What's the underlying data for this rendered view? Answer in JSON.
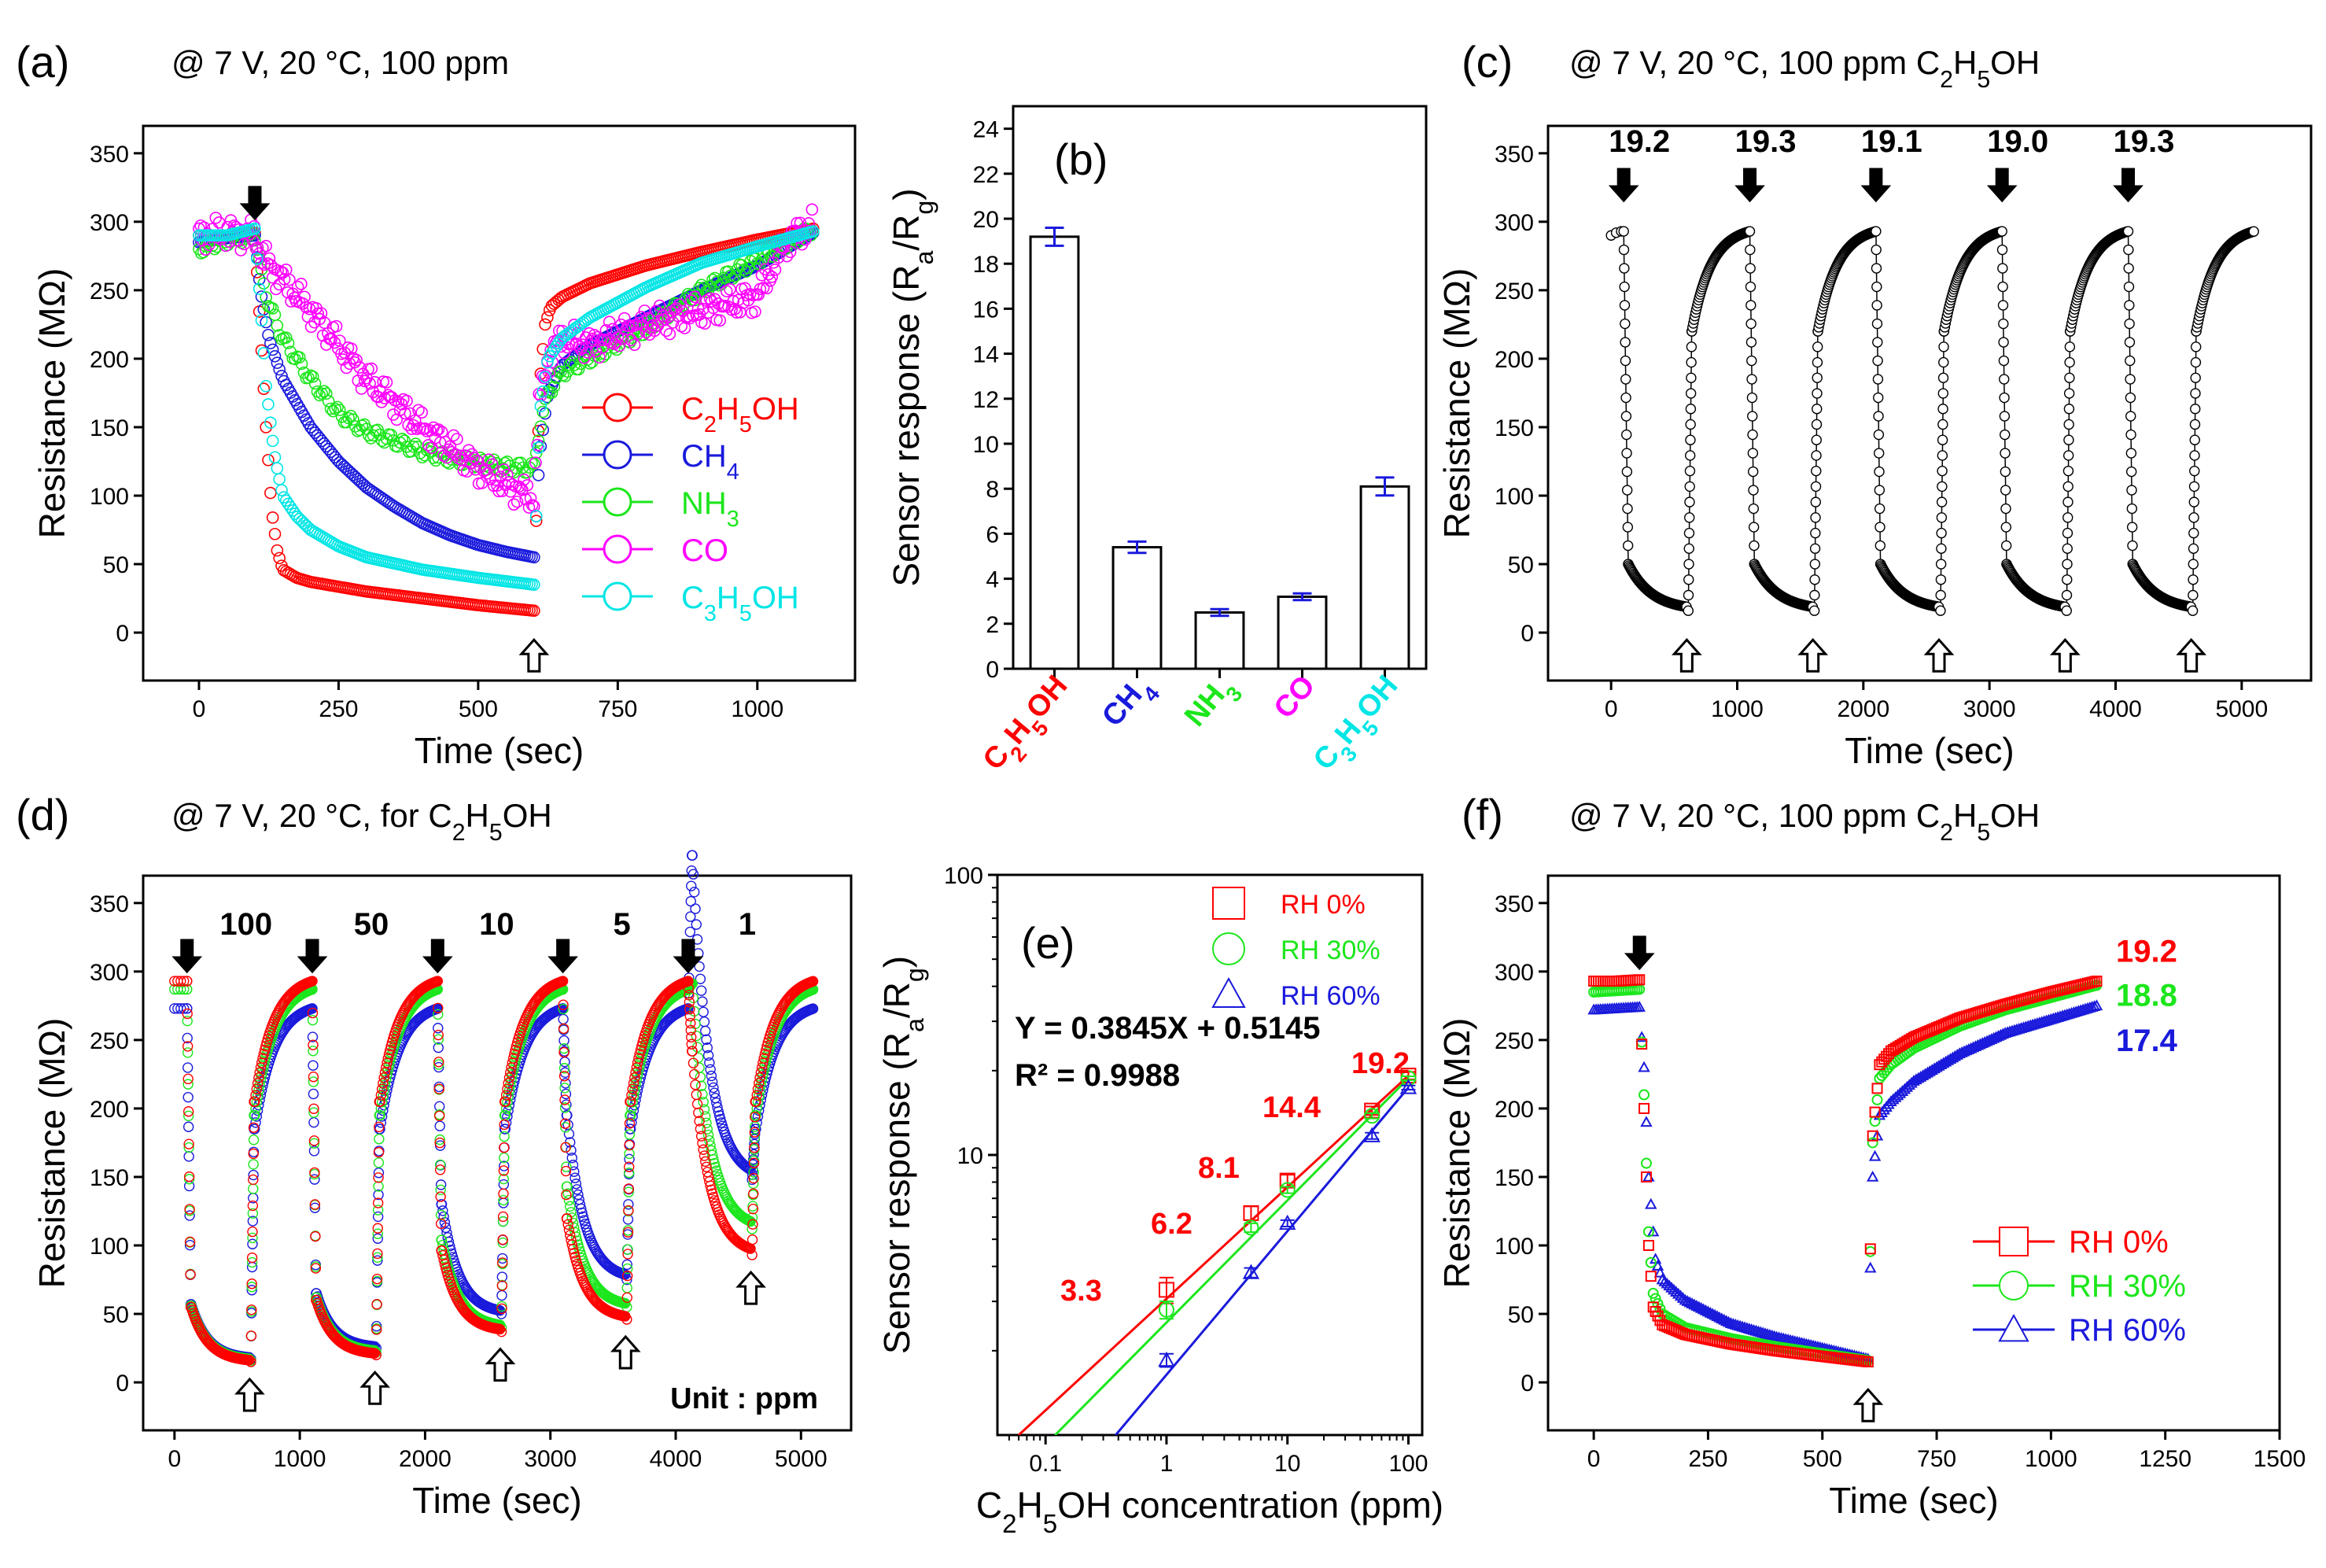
{
  "figure": {
    "description_label": "six-panel gas sensor figure"
  },
  "colors": {
    "red": "#ff0000",
    "blue": "#1a1adc",
    "green": "#1ce61c",
    "magenta": "#ff00ff",
    "cyan": "#00e5e5",
    "black": "#000000"
  },
  "chart_data": [
    {
      "id": "a",
      "type": "line",
      "panel_label": "(a)",
      "title": "@ 7 V, 20 °C, 100 ppm",
      "xlabel": "Time (sec)",
      "ylabel": "Resistance (MΩ)",
      "xlim": [
        -100,
        1175
      ],
      "ylim": [
        -35,
        370
      ],
      "xticks": [
        0,
        250,
        500,
        750,
        1000
      ],
      "yticks": [
        0,
        50,
        100,
        150,
        200,
        250,
        300,
        350
      ],
      "markers": [
        {
          "type": "on",
          "x": 100
        },
        {
          "type": "off",
          "x": 600
        }
      ],
      "legend": {
        "position": "right",
        "entries": [
          {
            "label": "C2H5OH",
            "color": "#ff0000",
            "marker": "circle"
          },
          {
            "label": "CH4",
            "color": "#1a1adc",
            "marker": "circle"
          },
          {
            "label": "NH3",
            "color": "#1ce61c",
            "marker": "circle"
          },
          {
            "label": "CO",
            "color": "#ff00ff",
            "marker": "circle"
          },
          {
            "label": "C3H5OH",
            "color": "#00e5e5",
            "marker": "circle"
          }
        ]
      },
      "series": [
        {
          "name": "C2H5OH",
          "color": "#ff0000",
          "x": [
            0,
            50,
            100,
            110,
            120,
            130,
            140,
            150,
            175,
            200,
            300,
            400,
            500,
            600,
            610,
            620,
            630,
            650,
            700,
            800,
            900,
            1000,
            1100
          ],
          "y": [
            290,
            290,
            292,
            220,
            150,
            90,
            60,
            46,
            40,
            37,
            30,
            25,
            20,
            16,
            180,
            225,
            238,
            245,
            255,
            268,
            278,
            287,
            295
          ]
        },
        {
          "name": "CH4",
          "color": "#1a1adc",
          "x": [
            0,
            50,
            100,
            110,
            125,
            150,
            200,
            250,
            300,
            350,
            400,
            450,
            500,
            550,
            600,
            610,
            625,
            650,
            700,
            800,
            900,
            1000,
            1100
          ],
          "y": [
            285,
            288,
            290,
            250,
            215,
            185,
            150,
            125,
            106,
            92,
            80,
            71,
            64,
            59,
            55,
            130,
            175,
            195,
            210,
            230,
            250,
            268,
            292
          ]
        },
        {
          "name": "NH3",
          "color": "#1ce61c",
          "x": [
            0,
            50,
            100,
            110,
            125,
            150,
            200,
            250,
            300,
            350,
            400,
            450,
            500,
            550,
            600,
            610,
            625,
            650,
            700,
            800,
            900,
            1000,
            1100
          ],
          "y": [
            280,
            287,
            290,
            265,
            240,
            215,
            185,
            160,
            147,
            140,
            132,
            127,
            124,
            121,
            120,
            150,
            175,
            190,
            200,
            222,
            250,
            272,
            295
          ]
        },
        {
          "name": "CO",
          "color": "#ff00ff",
          "x": [
            0,
            50,
            100,
            110,
            125,
            150,
            200,
            250,
            300,
            350,
            400,
            450,
            500,
            550,
            600,
            610,
            625,
            650,
            700,
            800,
            900,
            950,
            1000,
            1050,
            1100
          ],
          "y": [
            290,
            292,
            290,
            278,
            268,
            258,
            235,
            210,
            185,
            168,
            150,
            135,
            120,
            108,
            98,
            170,
            200,
            215,
            210,
            225,
            235,
            240,
            245,
            285,
            298
          ]
        },
        {
          "name": "C3H5OH",
          "color": "#00e5e5",
          "x": [
            0,
            50,
            100,
            110,
            120,
            135,
            150,
            175,
            200,
            250,
            300,
            400,
            500,
            600,
            610,
            625,
            650,
            700,
            800,
            900,
            1000,
            1100
          ],
          "y": [
            290,
            290,
            295,
            240,
            180,
            130,
            100,
            85,
            75,
            63,
            55,
            46,
            40,
            35,
            160,
            200,
            215,
            230,
            252,
            270,
            282,
            293
          ]
        }
      ]
    },
    {
      "id": "b",
      "type": "bar",
      "panel_label": "(b)",
      "title": "",
      "xlabel": "",
      "ylabel": "Sensor response (Ra/Rg)",
      "ylim": [
        0,
        25
      ],
      "yticks": [
        0,
        2,
        4,
        6,
        8,
        10,
        12,
        14,
        16,
        18,
        20,
        22,
        24
      ],
      "categories": [
        "C2H5OH",
        "CH4",
        "NH3",
        "CO",
        "C3H5OH"
      ],
      "category_colors": [
        "#ff0000",
        "#1a1adc",
        "#1ce61c",
        "#ff00ff",
        "#00e5e5"
      ],
      "values": [
        19.2,
        5.4,
        2.5,
        3.2,
        8.1
      ],
      "errors": [
        0.4,
        0.25,
        0.15,
        0.15,
        0.4
      ]
    },
    {
      "id": "c",
      "type": "line",
      "panel_label": "(c)",
      "title": "@ 7 V, 20 °C, 100 ppm C2H5OH",
      "xlabel": "Time (sec)",
      "ylabel": "Resistance (MΩ)",
      "xlim": [
        -500,
        5550
      ],
      "ylim": [
        -35,
        370
      ],
      "xticks": [
        0,
        1000,
        2000,
        3000,
        4000,
        5000
      ],
      "yticks": [
        0,
        50,
        100,
        150,
        200,
        250,
        300,
        350
      ],
      "cycle_labels": [
        {
          "x": 100,
          "y": 350,
          "text": "19.2"
        },
        {
          "x": 1100,
          "y": 350,
          "text": "19.3"
        },
        {
          "x": 2100,
          "y": 350,
          "text": "19.1"
        },
        {
          "x": 3100,
          "y": 350,
          "text": "19.0"
        },
        {
          "x": 4100,
          "y": 350,
          "text": "19.3"
        }
      ],
      "on_times": [
        100,
        1100,
        2100,
        3100,
        4100
      ],
      "off_times": [
        600,
        1600,
        2600,
        3600,
        4600
      ],
      "series": [
        {
          "name": "C2H5OH 100 ppm",
          "color": "#000000",
          "cycles": 5,
          "period": 1000,
          "r_base": 293,
          "r_min": 16
        }
      ]
    },
    {
      "id": "d",
      "type": "line",
      "panel_label": "(d)",
      "title": "@ 7 V, 20 °C, for C2H5OH",
      "xlabel": "Time (sec)",
      "ylabel": "Resistance (MΩ)",
      "xlim": [
        -250,
        5400
      ],
      "ylim": [
        -35,
        370
      ],
      "xticks": [
        0,
        1000,
        2000,
        3000,
        4000,
        5000
      ],
      "yticks": [
        0,
        50,
        100,
        150,
        200,
        250,
        300,
        350
      ],
      "concentration_labels": [
        {
          "x": 450,
          "y": 335,
          "text": "100"
        },
        {
          "x": 1500,
          "y": 335,
          "text": "50"
        },
        {
          "x": 2450,
          "y": 335,
          "text": "10"
        },
        {
          "x": 3370,
          "y": 335,
          "text": "5"
        },
        {
          "x": 4430,
          "y": 335,
          "text": "1"
        }
      ],
      "unit_text": "Unit : ppm",
      "on_times": [
        100,
        1100,
        2100,
        3100,
        4100
      ],
      "off_times": [
        600,
        1600,
        2600,
        3600,
        4600
      ],
      "series": [
        {
          "name": "RH 0%",
          "color": "#ff0000",
          "minima": [
            15,
            20,
            37,
            46,
            93
          ],
          "base": 293
        },
        {
          "name": "RH 30%",
          "color": "#1ce61c",
          "minima": [
            16,
            22,
            40,
            55,
            112
          ],
          "base": 287
        },
        {
          "name": "RH 60%",
          "color": "#1a1adc",
          "minima": [
            17,
            25,
            50,
            75,
            148
          ],
          "base": 273
        }
      ]
    },
    {
      "id": "e",
      "type": "scatter",
      "panel_label": "(e)",
      "title": "",
      "xlabel": "C2H5OH concentration (ppm)",
      "ylabel": "Sensor response (Ra/Rg)",
      "xscale": "log",
      "yscale": "log",
      "xlim": [
        0.04,
        130
      ],
      "ylim": [
        1,
        100
      ],
      "xticks": [
        0.1,
        1,
        10,
        100
      ],
      "yticks": [
        10,
        100
      ],
      "equation": "Y = 0.3845X + 0.5145",
      "r_squared": "R² = 0.9988",
      "data_labels": [
        {
          "x": 0.5,
          "y": 3.4,
          "text": "3.3"
        },
        {
          "x": 2.0,
          "y": 6.6,
          "text": "6.2"
        },
        {
          "x": 4.0,
          "y": 9.2,
          "text": "8.1"
        },
        {
          "x": 20,
          "y": 15.8,
          "text": "14.4"
        },
        {
          "x": 52,
          "y": 21.5,
          "text": "19.2"
        }
      ],
      "x": [
        1,
        5,
        10,
        50,
        100
      ],
      "series": [
        {
          "name": "RH 0%",
          "color": "#ff0000",
          "marker": "square",
          "values": [
            3.3,
            6.2,
            8.1,
            14.4,
            19.2
          ],
          "errors": [
            0.35,
            0.35,
            0.4,
            0.5,
            0.6
          ],
          "fit": [
            [
              0.06,
              1.0
            ],
            [
              100,
              19.2
            ]
          ]
        },
        {
          "name": "RH 30%",
          "color": "#1ce61c",
          "marker": "circle",
          "values": [
            2.8,
            5.5,
            7.5,
            13.8,
            18.8
          ],
          "errors": [
            0.2,
            0.2,
            0.2,
            0.3,
            0.3
          ],
          "fit": [
            [
              0.12,
              1.0
            ],
            [
              100,
              18.8
            ]
          ]
        },
        {
          "name": "RH 60%",
          "color": "#1a1adc",
          "marker": "triangle",
          "values": [
            1.85,
            3.8,
            5.7,
            11.7,
            17.4
          ],
          "errors": [
            0.1,
            0.15,
            0.15,
            0.3,
            0.3
          ],
          "fit": [
            [
              0.38,
              1.0
            ],
            [
              100,
              17.4
            ]
          ]
        }
      ]
    },
    {
      "id": "f",
      "type": "line",
      "panel_label": "(f)",
      "title": "@ 7 V, 20 °C, 100 ppm C2H5OH",
      "xlabel": "Time (sec)",
      "ylabel": "Resistance (MΩ)",
      "xlim": [
        -100,
        1500
      ],
      "ylim": [
        -35,
        370
      ],
      "xticks": [
        0,
        250,
        500,
        750,
        1000,
        1250,
        1500
      ],
      "yticks": [
        0,
        50,
        100,
        150,
        200,
        250,
        300,
        350
      ],
      "markers": [
        {
          "type": "on",
          "x": 100
        },
        {
          "type": "off",
          "x": 600
        }
      ],
      "end_labels": [
        {
          "text": "19.2",
          "color": "#ff0000",
          "y": 315
        },
        {
          "text": "18.8",
          "color": "#1ce61c",
          "y": 283
        },
        {
          "text": "17.4",
          "color": "#1a1adc",
          "y": 250
        }
      ],
      "legend": {
        "position": "bottom-right",
        "entries": [
          {
            "label": "RH 0%",
            "color": "#ff0000",
            "marker": "square"
          },
          {
            "label": "RH 30%",
            "color": "#1ce61c",
            "marker": "circle"
          },
          {
            "label": "RH 60%",
            "color": "#1a1adc",
            "marker": "triangle"
          }
        ]
      },
      "series": [
        {
          "name": "RH 0%",
          "color": "#ff0000",
          "marker": "square",
          "x": [
            0,
            50,
            100,
            110,
            120,
            130,
            150,
            200,
            300,
            400,
            500,
            600,
            610,
            625,
            650,
            700,
            800,
            900,
            1000,
            1100
          ],
          "y": [
            293,
            293,
            294,
            200,
            100,
            55,
            42,
            35,
            28,
            23,
            19,
            15,
            180,
            232,
            242,
            252,
            266,
            276,
            285,
            293
          ]
        },
        {
          "name": "RH 30%",
          "color": "#1ce61c",
          "marker": "circle",
          "x": [
            0,
            50,
            100,
            110,
            120,
            130,
            150,
            200,
            300,
            400,
            500,
            600,
            610,
            625,
            650,
            700,
            800,
            900,
            1000,
            1100
          ],
          "y": [
            285,
            286,
            287,
            210,
            110,
            65,
            50,
            40,
            32,
            26,
            21,
            16,
            175,
            222,
            232,
            244,
            260,
            272,
            281,
            290
          ]
        },
        {
          "name": "RH 60%",
          "color": "#1a1adc",
          "marker": "triangle",
          "x": [
            0,
            50,
            100,
            110,
            120,
            135,
            150,
            200,
            300,
            400,
            500,
            600,
            610,
            625,
            650,
            700,
            800,
            900,
            1000,
            1100
          ],
          "y": [
            272,
            273,
            274,
            230,
            150,
            90,
            75,
            60,
            43,
            33,
            25,
            17,
            150,
            195,
            205,
            220,
            240,
            255,
            265,
            275
          ]
        }
      ]
    }
  ]
}
